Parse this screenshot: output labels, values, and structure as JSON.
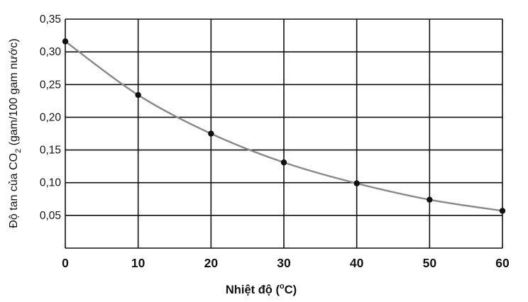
{
  "chart_data": {
    "type": "line",
    "title": "",
    "xlabel_parts": [
      "Nhiệt độ (",
      "o",
      "C)"
    ],
    "ylabel_parts": [
      "Độ tan của CO",
      "2",
      " (gam/100 gam nước)"
    ],
    "x_ticks": [
      "0",
      "10",
      "20",
      "30",
      "40",
      "50",
      "60"
    ],
    "y_ticks": [
      "0,05",
      "0,10",
      "0,15",
      "0,20",
      "0,25",
      "0,30",
      "0,35"
    ],
    "xlim": [
      0,
      60
    ],
    "ylim": [
      0,
      0.35
    ],
    "grid": true,
    "series": [
      {
        "x": [
          0,
          10,
          20,
          30,
          40,
          50,
          60
        ],
        "y": [
          0.316,
          0.234,
          0.175,
          0.131,
          0.099,
          0.074,
          0.057
        ]
      }
    ]
  }
}
